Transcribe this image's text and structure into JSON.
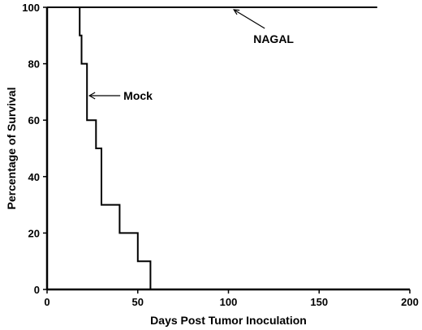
{
  "chart_data": {
    "type": "line",
    "title": "",
    "xlabel": "Days Post Tumor Inoculation",
    "ylabel": "Percentage of Survival",
    "xlim": [
      0,
      200
    ],
    "ylim": [
      0,
      100
    ],
    "xticks": [
      0,
      50,
      100,
      150,
      200
    ],
    "yticks": [
      0,
      20,
      40,
      60,
      80,
      100
    ],
    "grid": false,
    "legend": "none",
    "step": true,
    "series": [
      {
        "name": "NAGAL",
        "color": "#000000",
        "x": [
          0,
          182
        ],
        "y": [
          100,
          100
        ]
      },
      {
        "name": "Mock",
        "color": "#000000",
        "x": [
          0,
          18,
          18,
          19,
          19,
          22,
          22,
          27,
          27,
          30,
          30,
          40,
          40,
          50,
          50,
          57,
          57
        ],
        "y": [
          100,
          100,
          90,
          90,
          80,
          80,
          60,
          60,
          50,
          50,
          30,
          30,
          20,
          20,
          10,
          10,
          0
        ]
      }
    ],
    "annotations": [
      {
        "text": "NAGAL",
        "arrow_to": {
          "x": 103,
          "y": 100
        }
      },
      {
        "text": "Mock",
        "arrow_to": {
          "x": 22,
          "y": 68
        }
      }
    ]
  }
}
